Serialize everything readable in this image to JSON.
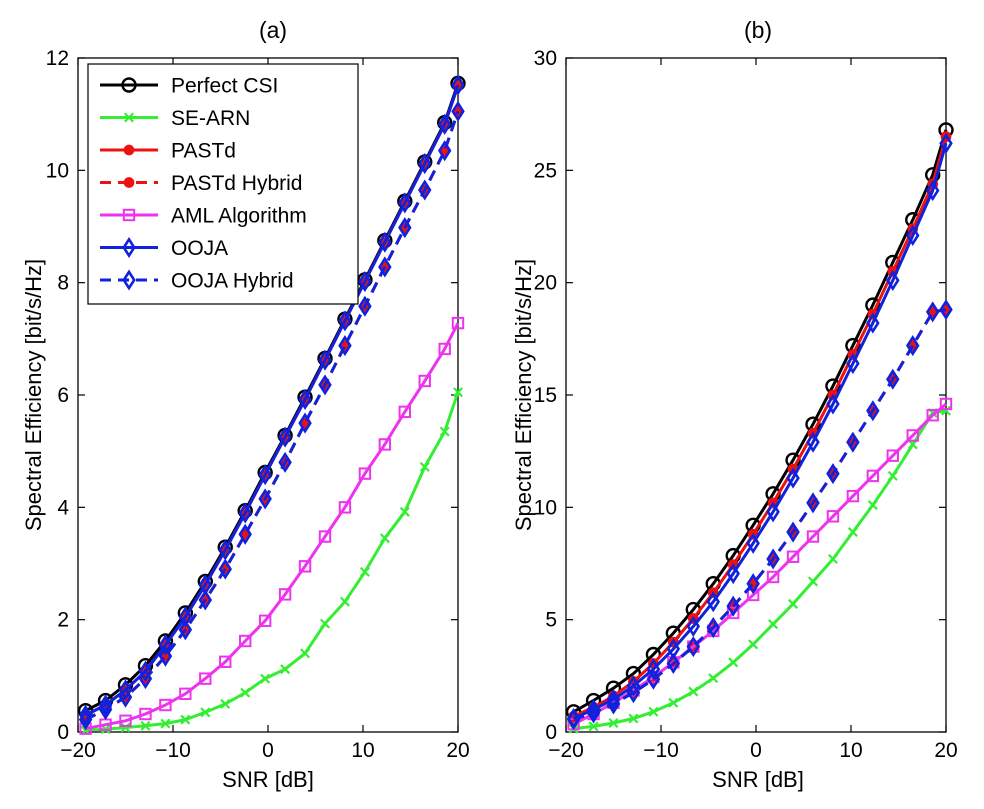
{
  "figure": {
    "description_free": true
  },
  "chart_data": [
    {
      "type": "line",
      "title": "(a)",
      "xlabel": "SNR [dB]",
      "ylabel": "Spectral Efficiency [bit/s/Hz]",
      "xlim": [
        -20,
        20
      ],
      "ylim": [
        0,
        12
      ],
      "xticks": [
        -20,
        -10,
        0,
        10,
        20
      ],
      "xtick_labels": [
        "−20",
        "−10",
        "0",
        "10",
        "20"
      ],
      "yticks": [
        0,
        2,
        4,
        6,
        8,
        10,
        12
      ],
      "ytick_labels": [
        "0",
        "2",
        "4",
        "6",
        "8",
        "10",
        "12"
      ],
      "x": [
        -19.2,
        -17.1,
        -15.0,
        -12.9,
        -10.8,
        -8.7,
        -6.6,
        -4.5,
        -2.4,
        -0.3,
        1.8,
        3.9,
        6.0,
        8.1,
        10.2,
        12.3,
        14.4,
        16.5,
        18.6,
        20.0
      ],
      "series": [
        {
          "name": "Perfect CSI",
          "color": "#000000",
          "dash": "solid",
          "marker": "circle",
          "values": [
            0.38,
            0.56,
            0.84,
            1.18,
            1.62,
            2.12,
            2.68,
            3.29,
            3.94,
            4.62,
            5.28,
            5.96,
            6.65,
            7.35,
            8.05,
            8.75,
            9.45,
            10.15,
            10.85,
            11.55
          ]
        },
        {
          "name": "SE-ARN",
          "color": "#33ee33",
          "dash": "solid",
          "marker": "x",
          "values": [
            0.03,
            0.05,
            0.08,
            0.11,
            0.15,
            0.22,
            0.35,
            0.5,
            0.7,
            0.95,
            1.12,
            1.4,
            1.93,
            2.32,
            2.85,
            3.45,
            3.92,
            4.72,
            5.35,
            6.05
          ]
        },
        {
          "name": "PASTd",
          "color": "#ee1111",
          "dash": "solid",
          "marker": "dot",
          "values": [
            0.3,
            0.48,
            0.75,
            1.08,
            1.55,
            2.05,
            2.62,
            3.24,
            3.9,
            4.58,
            5.25,
            5.92,
            6.62,
            7.32,
            8.02,
            8.72,
            9.42,
            10.12,
            10.82,
            11.5
          ]
        },
        {
          "name": "PASTd Hybrid",
          "color": "#ee1111",
          "dash": "dashed",
          "marker": "dot",
          "values": [
            0.22,
            0.4,
            0.62,
            0.95,
            1.35,
            1.82,
            2.35,
            2.9,
            3.52,
            4.15,
            4.8,
            5.5,
            6.18,
            6.88,
            7.58,
            8.28,
            8.98,
            9.65,
            10.35,
            11.05
          ]
        },
        {
          "name": "AML Algorithm",
          "color": "#ee33ee",
          "dash": "solid",
          "marker": "square",
          "values": [
            0.06,
            0.13,
            0.2,
            0.32,
            0.48,
            0.68,
            0.95,
            1.25,
            1.62,
            1.98,
            2.45,
            2.95,
            3.48,
            4.0,
            4.6,
            5.12,
            5.7,
            6.25,
            6.82,
            7.28
          ]
        },
        {
          "name": "OOJA",
          "color": "#1122dd",
          "dash": "solid",
          "marker": "diamond",
          "values": [
            0.3,
            0.48,
            0.75,
            1.08,
            1.55,
            2.05,
            2.62,
            3.24,
            3.9,
            4.58,
            5.25,
            5.92,
            6.62,
            7.32,
            8.02,
            8.72,
            9.42,
            10.12,
            10.82,
            11.52
          ]
        },
        {
          "name": "OOJA Hybrid",
          "color": "#1122dd",
          "dash": "dashed",
          "marker": "diamond",
          "values": [
            0.22,
            0.4,
            0.62,
            0.95,
            1.35,
            1.82,
            2.35,
            2.9,
            3.52,
            4.15,
            4.8,
            5.5,
            6.18,
            6.88,
            7.58,
            8.28,
            8.98,
            9.65,
            10.35,
            11.05
          ]
        }
      ],
      "legend": {
        "placement": "top-left",
        "entries": [
          "Perfect CSI",
          "SE-ARN",
          "PASTd",
          "PASTd Hybrid",
          "AML Algorithm",
          "OOJA",
          "OOJA Hybrid"
        ]
      }
    },
    {
      "type": "line",
      "title": "(b)",
      "xlabel": "SNR [dB]",
      "ylabel": "Spectral Efficiency [bit/s/Hz]",
      "xlim": [
        -20,
        20
      ],
      "ylim": [
        0,
        30
      ],
      "xticks": [
        -20,
        -10,
        0,
        10,
        20
      ],
      "xtick_labels": [
        "−20",
        "−10",
        "0",
        "10",
        "20"
      ],
      "yticks": [
        0,
        5,
        10,
        15,
        20,
        25,
        30
      ],
      "ytick_labels": [
        "0",
        "5",
        "10",
        "15",
        "20",
        "25",
        "30"
      ],
      "x": [
        -19.2,
        -17.1,
        -15.0,
        -12.9,
        -10.8,
        -8.7,
        -6.6,
        -4.5,
        -2.4,
        -0.3,
        1.8,
        3.9,
        6.0,
        8.1,
        10.2,
        12.3,
        14.4,
        16.5,
        18.6,
        20.0
      ],
      "series": [
        {
          "name": "Perfect CSI",
          "color": "#000000",
          "dash": "solid",
          "marker": "circle",
          "values": [
            0.9,
            1.4,
            1.95,
            2.6,
            3.45,
            4.4,
            5.45,
            6.6,
            7.85,
            9.2,
            10.6,
            12.1,
            13.7,
            15.4,
            17.2,
            19.0,
            20.9,
            22.8,
            24.8,
            26.8
          ]
        },
        {
          "name": "SE-ARN",
          "color": "#33ee33",
          "dash": "solid",
          "marker": "x",
          "values": [
            0.15,
            0.25,
            0.4,
            0.6,
            0.9,
            1.3,
            1.8,
            2.4,
            3.1,
            3.9,
            4.8,
            5.7,
            6.7,
            7.7,
            8.9,
            10.1,
            11.4,
            12.8,
            14.2,
            14.3
          ]
        },
        {
          "name": "PASTd",
          "color": "#ee1111",
          "dash": "solid",
          "marker": "dot",
          "values": [
            0.7,
            1.1,
            1.6,
            2.25,
            3.05,
            4.0,
            5.05,
            6.2,
            7.45,
            8.8,
            10.2,
            11.7,
            13.3,
            15.0,
            16.8,
            18.6,
            20.5,
            22.4,
            24.4,
            26.5
          ]
        },
        {
          "name": "PASTd Hybrid",
          "color": "#ee1111",
          "dash": "dashed",
          "marker": "dot",
          "values": [
            0.55,
            0.85,
            1.25,
            1.75,
            2.35,
            3.05,
            3.8,
            4.65,
            5.6,
            6.6,
            7.7,
            8.9,
            10.2,
            11.5,
            12.9,
            14.3,
            15.7,
            17.2,
            18.7,
            18.8
          ]
        },
        {
          "name": "AML Algorithm",
          "color": "#ee33ee",
          "dash": "solid",
          "marker": "square",
          "values": [
            0.35,
            0.8,
            1.3,
            1.85,
            2.45,
            3.1,
            3.8,
            4.5,
            5.3,
            6.1,
            6.9,
            7.8,
            8.7,
            9.6,
            10.5,
            11.4,
            12.3,
            13.2,
            14.1,
            14.6
          ]
        },
        {
          "name": "OOJA",
          "color": "#1122dd",
          "dash": "solid",
          "marker": "diamond",
          "values": [
            0.6,
            1.0,
            1.45,
            2.05,
            2.8,
            3.7,
            4.7,
            5.8,
            7.05,
            8.4,
            9.8,
            11.3,
            12.9,
            14.6,
            16.4,
            18.2,
            20.1,
            22.1,
            24.1,
            26.2
          ]
        },
        {
          "name": "OOJA Hybrid",
          "color": "#1122dd",
          "dash": "dashed",
          "marker": "diamond",
          "values": [
            0.55,
            0.85,
            1.25,
            1.75,
            2.35,
            3.05,
            3.8,
            4.65,
            5.6,
            6.6,
            7.7,
            8.9,
            10.2,
            11.5,
            12.9,
            14.3,
            15.7,
            17.2,
            18.7,
            18.8
          ]
        }
      ]
    }
  ]
}
